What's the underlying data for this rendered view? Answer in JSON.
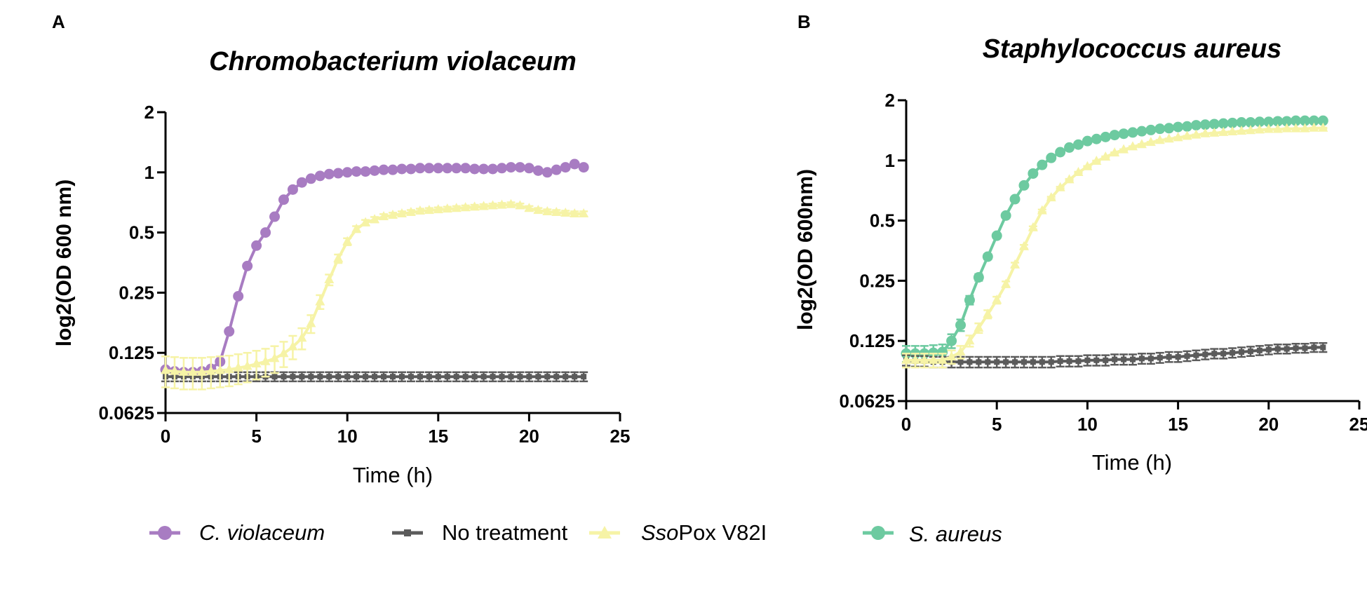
{
  "panel_a": {
    "letter": "A"
  },
  "panel_b": {
    "letter": "B"
  },
  "legend": {
    "cv": {
      "italic": "C. violaceum",
      "plain": ""
    },
    "nt": {
      "italic": "",
      "plain": "No treatment"
    },
    "sso": {
      "italic": "Sso",
      "plain": "Pox V82I"
    },
    "sa": {
      "italic": "S. aureus",
      "plain": ""
    }
  },
  "colors": {
    "cv": "#a87cc2",
    "nt": "#5b5b5b",
    "sso": "#f6f3a6",
    "sa": "#6dcaa0"
  },
  "chart_data": [
    {
      "type": "line",
      "panel": "A",
      "title": "Chromobacterium violaceum",
      "xlabel": "Time (h)",
      "ylabel": "log2(OD 600 nm)",
      "xlim": [
        0,
        25
      ],
      "ylim": [
        0.0625,
        2
      ],
      "yscale": "log2",
      "xticks": [
        "0",
        "5",
        "10",
        "15",
        "20",
        "25"
      ],
      "yticks": [
        "0.0625",
        "0.125",
        "0.25",
        "0.5",
        "1",
        "2"
      ],
      "series": [
        {
          "name": "C. violaceum",
          "key": "cv",
          "marker": "circle",
          "x": [
            0,
            0.5,
            1,
            1.5,
            2,
            2.5,
            3,
            3.5,
            4,
            4.5,
            5,
            5.5,
            6,
            6.5,
            7,
            7.5,
            8,
            8.5,
            9,
            9.5,
            10,
            10.5,
            11,
            11.5,
            12,
            12.5,
            13,
            13.5,
            14,
            14.5,
            15,
            15.5,
            16,
            16.5,
            17,
            17.5,
            18,
            18.5,
            19,
            19.5,
            20,
            20.5,
            21,
            21.5,
            22,
            22.5,
            23
          ],
          "y": [
            0.103,
            0.101,
            0.1,
            0.1,
            0.101,
            0.104,
            0.113,
            0.16,
            0.24,
            0.34,
            0.43,
            0.5,
            0.6,
            0.73,
            0.82,
            0.89,
            0.93,
            0.96,
            0.98,
            0.99,
            1.0,
            1.01,
            1.01,
            1.02,
            1.03,
            1.03,
            1.04,
            1.04,
            1.05,
            1.05,
            1.05,
            1.05,
            1.05,
            1.05,
            1.04,
            1.04,
            1.04,
            1.05,
            1.06,
            1.06,
            1.05,
            1.02,
            1.0,
            1.03,
            1.06,
            1.1,
            1.06
          ]
        },
        {
          "name": "No treatment",
          "key": "nt",
          "marker": "square",
          "x": [
            0,
            0.5,
            1,
            1.5,
            2,
            2.5,
            3,
            3.5,
            4,
            4.5,
            5,
            5.5,
            6,
            6.5,
            7,
            7.5,
            8,
            8.5,
            9,
            9.5,
            10,
            10.5,
            11,
            11.5,
            12,
            12.5,
            13,
            13.5,
            14,
            14.5,
            15,
            15.5,
            16,
            16.5,
            17,
            17.5,
            18,
            18.5,
            19,
            19.5,
            20,
            20.5,
            21,
            21.5,
            22,
            22.5,
            23
          ],
          "y": [
            0.095,
            0.095,
            0.095,
            0.095,
            0.095,
            0.095,
            0.095,
            0.095,
            0.095,
            0.095,
            0.095,
            0.095,
            0.095,
            0.095,
            0.095,
            0.095,
            0.095,
            0.095,
            0.095,
            0.095,
            0.095,
            0.095,
            0.095,
            0.095,
            0.095,
            0.095,
            0.095,
            0.095,
            0.095,
            0.095,
            0.095,
            0.095,
            0.095,
            0.095,
            0.095,
            0.095,
            0.095,
            0.095,
            0.095,
            0.095,
            0.095,
            0.095,
            0.095,
            0.095,
            0.095,
            0.095,
            0.095
          ],
          "err": 0.005
        },
        {
          "name": "SsoPox V82I",
          "key": "sso",
          "marker": "triangle",
          "x": [
            0,
            0.5,
            1,
            1.5,
            2,
            2.5,
            3,
            3.5,
            4,
            4.5,
            5,
            5.5,
            6,
            6.5,
            7,
            7.5,
            8,
            8.5,
            9,
            9.5,
            10,
            10.5,
            11,
            11.5,
            12,
            12.5,
            13,
            13.5,
            14,
            14.5,
            15,
            15.5,
            16,
            16.5,
            17,
            17.5,
            18,
            18.5,
            19,
            19.5,
            20,
            20.5,
            21,
            21.5,
            22,
            22.5,
            23
          ],
          "y": [
            0.102,
            0.101,
            0.1,
            0.1,
            0.1,
            0.101,
            0.102,
            0.103,
            0.105,
            0.107,
            0.11,
            0.113,
            0.117,
            0.124,
            0.134,
            0.148,
            0.175,
            0.225,
            0.29,
            0.37,
            0.45,
            0.52,
            0.56,
            0.58,
            0.6,
            0.61,
            0.62,
            0.63,
            0.64,
            0.645,
            0.65,
            0.655,
            0.66,
            0.665,
            0.67,
            0.675,
            0.68,
            0.685,
            0.69,
            0.68,
            0.66,
            0.645,
            0.635,
            0.63,
            0.625,
            0.62,
            0.62
          ],
          "err": 0.018
        }
      ]
    },
    {
      "type": "line",
      "panel": "B",
      "title": "Staphylococcus aureus",
      "xlabel": "Time (h)",
      "ylabel": "log2(OD 600nm)",
      "xlim": [
        0,
        25
      ],
      "ylim": [
        0.0625,
        2
      ],
      "yscale": "log2",
      "xticks": [
        "0",
        "5",
        "10",
        "15",
        "20",
        "25"
      ],
      "yticks": [
        "0.0625",
        "0.125",
        "0.25",
        "0.5",
        "1",
        "2"
      ],
      "series": [
        {
          "name": "S. aureus",
          "key": "sa",
          "marker": "circle",
          "x": [
            0,
            0.5,
            1,
            1.5,
            2,
            2.5,
            3,
            3.5,
            4,
            4.5,
            5,
            5.5,
            6,
            6.5,
            7,
            7.5,
            8,
            8.5,
            9,
            9.5,
            10,
            10.5,
            11,
            11.5,
            12,
            12.5,
            13,
            13.5,
            14,
            14.5,
            15,
            15.5,
            16,
            16.5,
            17,
            17.5,
            18,
            18.5,
            19,
            19.5,
            20,
            20.5,
            21,
            21.5,
            22,
            22.5,
            23
          ],
          "y": [
            0.108,
            0.108,
            0.108,
            0.109,
            0.11,
            0.125,
            0.15,
            0.2,
            0.26,
            0.33,
            0.42,
            0.53,
            0.64,
            0.75,
            0.86,
            0.95,
            1.03,
            1.1,
            1.16,
            1.2,
            1.25,
            1.28,
            1.31,
            1.34,
            1.36,
            1.38,
            1.4,
            1.42,
            1.44,
            1.45,
            1.47,
            1.48,
            1.5,
            1.51,
            1.52,
            1.53,
            1.54,
            1.55,
            1.55,
            1.56,
            1.56,
            1.57,
            1.57,
            1.58,
            1.58,
            1.58,
            1.58
          ],
          "err": 0.01
        },
        {
          "name": "No treatment",
          "key": "nt",
          "marker": "square",
          "x": [
            0,
            0.5,
            1,
            1.5,
            2,
            2.5,
            3,
            3.5,
            4,
            4.5,
            5,
            5.5,
            6,
            6.5,
            7,
            7.5,
            8,
            8.5,
            9,
            9.5,
            10,
            10.5,
            11,
            11.5,
            12,
            12.5,
            13,
            13.5,
            14,
            14.5,
            15,
            15.5,
            16,
            16.5,
            17,
            17.5,
            18,
            18.5,
            19,
            19.5,
            20,
            20.5,
            21,
            21.5,
            22,
            22.5,
            23
          ],
          "y": [
            0.1,
            0.099,
            0.099,
            0.098,
            0.098,
            0.098,
            0.098,
            0.098,
            0.098,
            0.098,
            0.098,
            0.098,
            0.098,
            0.098,
            0.098,
            0.098,
            0.098,
            0.099,
            0.099,
            0.099,
            0.1,
            0.1,
            0.1,
            0.101,
            0.101,
            0.101,
            0.102,
            0.102,
            0.103,
            0.104,
            0.104,
            0.105,
            0.106,
            0.107,
            0.108,
            0.108,
            0.109,
            0.11,
            0.111,
            0.112,
            0.113,
            0.114,
            0.114,
            0.115,
            0.115,
            0.116,
            0.116
          ],
          "err": 0.006
        },
        {
          "name": "SsoPox V82I",
          "key": "sso",
          "marker": "triangle",
          "x": [
            0,
            0.5,
            1,
            1.5,
            2,
            2.5,
            3,
            3.5,
            4,
            4.5,
            5,
            5.5,
            6,
            6.5,
            7,
            7.5,
            8,
            8.5,
            9,
            9.5,
            10,
            10.5,
            11,
            11.5,
            12,
            12.5,
            13,
            13.5,
            14,
            14.5,
            15,
            15.5,
            16,
            16.5,
            17,
            17.5,
            18,
            18.5,
            19,
            19.5,
            20,
            20.5,
            21,
            21.5,
            22,
            22.5,
            23
          ],
          "y": [
            0.1,
            0.1,
            0.1,
            0.1,
            0.1,
            0.104,
            0.11,
            0.125,
            0.145,
            0.17,
            0.2,
            0.24,
            0.3,
            0.37,
            0.46,
            0.56,
            0.65,
            0.73,
            0.8,
            0.87,
            0.93,
            0.99,
            1.04,
            1.09,
            1.13,
            1.17,
            1.2,
            1.23,
            1.26,
            1.28,
            1.3,
            1.32,
            1.34,
            1.36,
            1.37,
            1.38,
            1.39,
            1.4,
            1.41,
            1.42,
            1.43,
            1.43,
            1.44,
            1.44,
            1.44,
            1.45,
            1.45
          ],
          "err": 0.008
        }
      ]
    }
  ]
}
